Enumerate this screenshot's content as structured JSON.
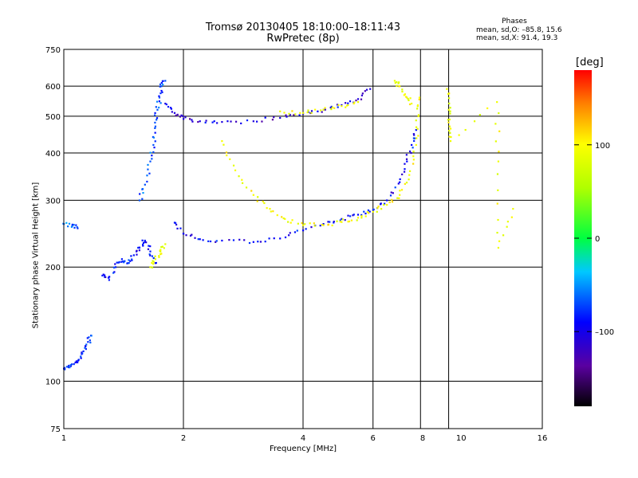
{
  "header": {
    "title": "Tromsø 20130405 18:10:00–18:11:43",
    "subtitle": "RwPretec (8p)"
  },
  "phases_box": {
    "title": "Phases",
    "o_line": "mean, sd,O: –85.8, 15.6",
    "x_line": "mean, sd,X:  91.4, 19.3"
  },
  "colorbar": {
    "label": "[deg]",
    "ticks": [
      {
        "value": 100,
        "label": "100"
      },
      {
        "value": 0,
        "label": "0"
      },
      {
        "value": -100,
        "label": "–100"
      }
    ],
    "range": [
      -180,
      180
    ]
  },
  "chart_data": {
    "type": "scatter",
    "xlabel": "Frequency [MHz]",
    "ylabel": "Stationary phase Virtual Height [km]",
    "xscale": "log",
    "yscale": "log",
    "xlim": [
      1,
      16
    ],
    "ylim": [
      75,
      750
    ],
    "x_ticks": [
      1,
      2,
      4,
      6,
      8,
      10,
      16
    ],
    "y_ticks": [
      75,
      100,
      200,
      300,
      400,
      500,
      600,
      750
    ],
    "x_grid": [
      2,
      4,
      6,
      7.9,
      9.3
    ],
    "y_grid": [
      100,
      200,
      300,
      400,
      500,
      600
    ],
    "color_by": "phase (deg)",
    "traces": [
      {
        "points": [
          [
            1.0,
            108
          ],
          [
            1.03,
            109
          ],
          [
            1.06,
            111
          ],
          [
            1.09,
            114
          ],
          [
            1.12,
            120
          ],
          [
            1.15,
            127
          ],
          [
            1.17,
            132
          ]
        ],
        "phase": -110
      },
      {
        "points": [
          [
            1.0,
            260
          ],
          [
            1.05,
            257
          ],
          [
            1.08,
            255
          ]
        ],
        "phase": -95
      },
      {
        "points": [
          [
            1.25,
            190
          ],
          [
            1.3,
            185
          ],
          [
            1.35,
            200
          ],
          [
            1.4,
            210
          ],
          [
            1.45,
            205
          ],
          [
            1.5,
            215
          ],
          [
            1.55,
            225
          ],
          [
            1.6,
            235
          ],
          [
            1.65,
            220
          ],
          [
            1.7,
            205
          ]
        ],
        "phase": -115
      },
      {
        "points": [
          [
            1.55,
            300
          ],
          [
            1.6,
            330
          ],
          [
            1.65,
            380
          ],
          [
            1.68,
            420
          ],
          [
            1.7,
            470
          ],
          [
            1.72,
            520
          ],
          [
            1.74,
            560
          ],
          [
            1.76,
            600
          ],
          [
            1.8,
            620
          ]
        ],
        "phase": -100
      },
      {
        "points": [
          [
            1.8,
            540
          ],
          [
            1.9,
            510
          ],
          [
            2.0,
            492
          ],
          [
            2.2,
            485
          ],
          [
            2.5,
            483
          ],
          [
            3.0,
            485
          ],
          [
            3.5,
            495
          ],
          [
            4.0,
            508
          ],
          [
            4.5,
            520
          ],
          [
            5.0,
            535
          ],
          [
            5.5,
            555
          ],
          [
            5.9,
            590
          ]
        ],
        "phase": -130
      },
      {
        "points": [
          [
            1.9,
            262
          ],
          [
            2.0,
            245
          ],
          [
            2.2,
            237
          ],
          [
            2.5,
            235
          ],
          [
            3.0,
            233
          ],
          [
            3.5,
            238
          ],
          [
            4.0,
            250
          ],
          [
            4.5,
            260
          ],
          [
            5.0,
            268
          ],
          [
            5.5,
            275
          ],
          [
            6.0,
            283
          ],
          [
            6.5,
            300
          ],
          [
            7.0,
            335
          ],
          [
            7.3,
            380
          ],
          [
            7.5,
            420
          ],
          [
            7.7,
            460
          ]
        ],
        "phase": -120
      },
      {
        "points": [
          [
            2.5,
            430
          ],
          [
            2.7,
            360
          ],
          [
            3.0,
            310
          ],
          [
            3.3,
            285
          ],
          [
            3.6,
            268
          ],
          [
            4.0,
            258
          ],
          [
            4.5,
            258
          ],
          [
            5.0,
            263
          ],
          [
            5.5,
            270
          ],
          [
            6.0,
            280
          ],
          [
            6.5,
            292
          ],
          [
            7.0,
            310
          ],
          [
            7.4,
            350
          ],
          [
            7.7,
            420
          ],
          [
            7.8,
            500
          ],
          [
            7.85,
            560
          ]
        ],
        "phase": 95
      },
      {
        "points": [
          [
            3.5,
            515
          ],
          [
            4.0,
            510
          ],
          [
            4.5,
            520
          ],
          [
            5.0,
            532
          ],
          [
            5.5,
            545
          ]
        ],
        "phase": 90
      },
      {
        "points": [
          [
            1.65,
            200
          ],
          [
            1.7,
            210
          ],
          [
            1.75,
            220
          ],
          [
            1.8,
            230
          ]
        ],
        "phase": 85
      },
      {
        "points": [
          [
            6.8,
            620
          ],
          [
            7.0,
            600
          ],
          [
            7.3,
            560
          ],
          [
            7.5,
            540
          ]
        ],
        "phase": 90
      },
      {
        "points": [
          [
            9.2,
            590
          ],
          [
            9.3,
            520
          ],
          [
            9.35,
            470
          ],
          [
            9.4,
            430
          ],
          [
            12.3,
            545
          ],
          [
            12.4,
            380
          ],
          [
            12.4,
            225
          ],
          [
            13.5,
            285
          ]
        ],
        "phase": 90
      }
    ]
  }
}
